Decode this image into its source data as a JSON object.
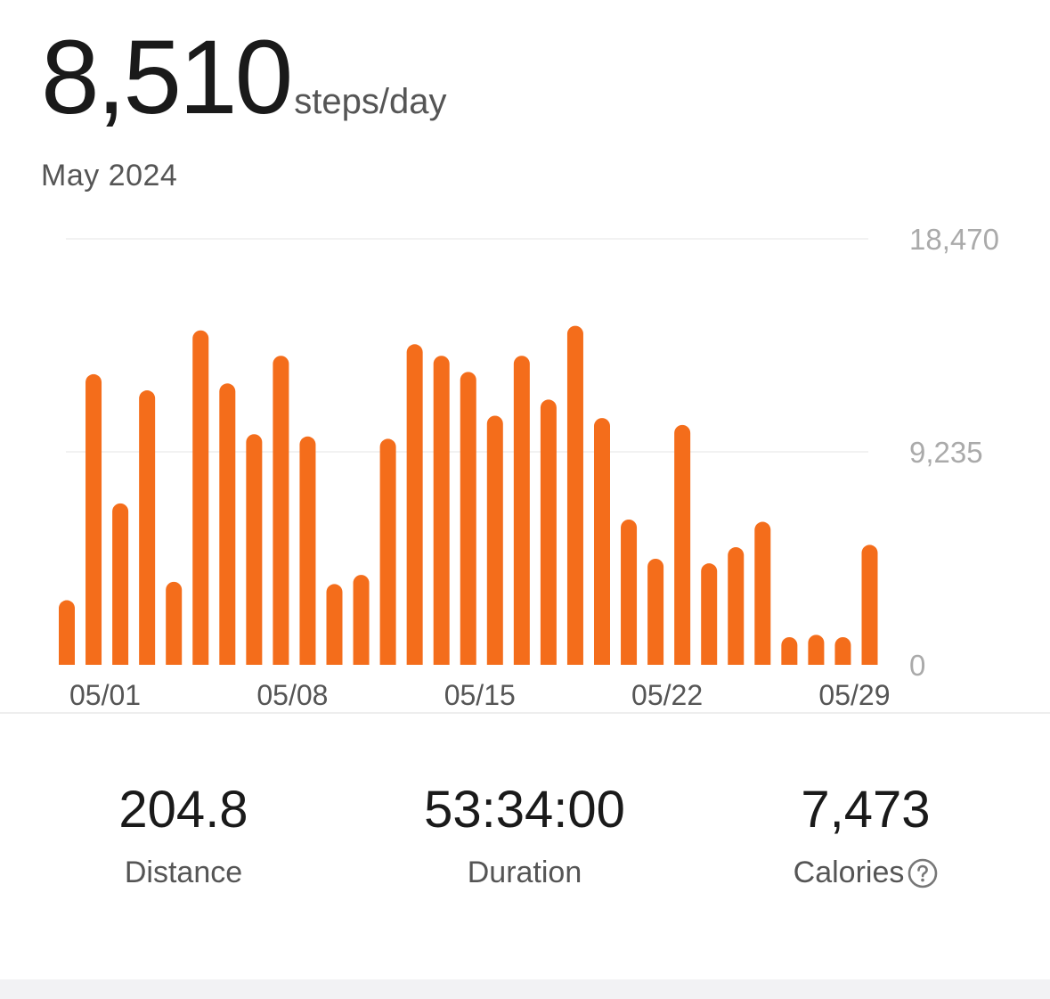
{
  "summary": {
    "average_value": "8,510",
    "average_unit": "steps/day",
    "period": "May 2024"
  },
  "colors": {
    "bar": "#f46d1b",
    "grid": "#eeeeee",
    "axis_text": "#555555",
    "y_text": "#aaaaaa"
  },
  "chart_data": {
    "type": "bar",
    "title": "",
    "xlabel": "",
    "ylabel": "",
    "ylim": [
      0,
      18470
    ],
    "y_ticks": [
      {
        "value": 0,
        "label": "0"
      },
      {
        "value": 9235,
        "label": "9,235"
      },
      {
        "value": 18470,
        "label": "18,470"
      }
    ],
    "x_tick_labels": [
      {
        "index": 1,
        "label": "05/01"
      },
      {
        "index": 8,
        "label": "05/08"
      },
      {
        "index": 15,
        "label": "05/15"
      },
      {
        "index": 22,
        "label": "05/22"
      },
      {
        "index": 29,
        "label": "05/29"
      }
    ],
    "grid": true,
    "categories": [
      "04/30",
      "05/01",
      "05/02",
      "05/03",
      "05/04",
      "05/05",
      "05/06",
      "05/07",
      "05/08",
      "05/09",
      "05/10",
      "05/11",
      "05/12",
      "05/13",
      "05/14",
      "05/15",
      "05/16",
      "05/17",
      "05/18",
      "05/19",
      "05/20",
      "05/21",
      "05/22",
      "05/23",
      "05/24",
      "05/25",
      "05/26",
      "05/27",
      "05/28",
      "05/29",
      "05/30"
    ],
    "values": [
      2800,
      12600,
      7000,
      11900,
      3600,
      14500,
      12200,
      10000,
      13400,
      9900,
      3500,
      3900,
      9800,
      13900,
      13400,
      12700,
      10800,
      13400,
      11500,
      14700,
      10700,
      6300,
      4600,
      10400,
      4400,
      5100,
      6200,
      1200,
      1300,
      1200,
      5200
    ]
  },
  "stats": [
    {
      "value": "204.8",
      "label": "Distance",
      "help": false
    },
    {
      "value": "53:34:00",
      "label": "Duration",
      "help": false
    },
    {
      "value": "7,473",
      "label": "Calories",
      "help": true
    }
  ]
}
